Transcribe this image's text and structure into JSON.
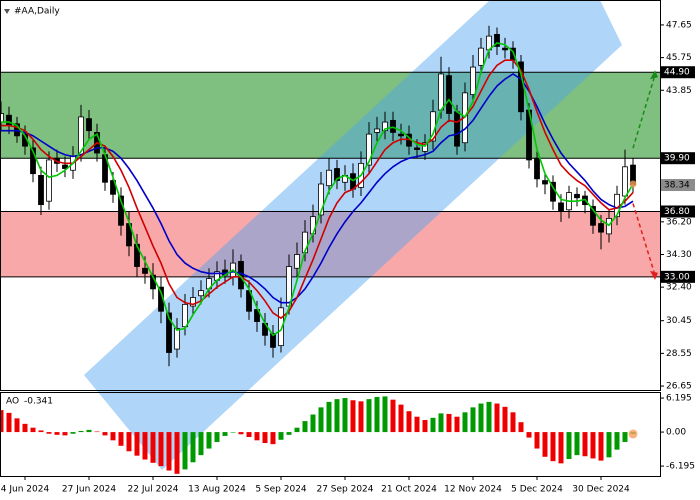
{
  "chart_data": [
    {
      "type": "candlestick",
      "title": "#AA,Daily",
      "categories": [
        null,
        null,
        null,
        "4 Jun 2024",
        null,
        null,
        null,
        null,
        null,
        null,
        null,
        "27 Jun 2024",
        null,
        null,
        null,
        null,
        null,
        null,
        null,
        "22 Jul 2024",
        null,
        null,
        null,
        null,
        null,
        null,
        null,
        "13 Aug 2024",
        null,
        null,
        null,
        null,
        null,
        null,
        null,
        "5 Sep 2024",
        null,
        null,
        null,
        null,
        null,
        null,
        null,
        "27 Sep 2024",
        null,
        null,
        null,
        null,
        null,
        null,
        null,
        "21 Oct 2024",
        null,
        null,
        null,
        null,
        null,
        null,
        null,
        "12 Nov 2024",
        null,
        null,
        null,
        null,
        null,
        null,
        null,
        "5 Dec 2024",
        null,
        null,
        null,
        null,
        null,
        null,
        null,
        "30 Dec 2024",
        null,
        null,
        null,
        null
      ],
      "open": [
        42.0,
        42.4,
        41.9,
        41.3,
        40.5,
        38.9,
        37.4,
        39.9,
        39.5,
        39.2,
        40.1,
        42.2,
        41.4,
        40.1,
        38.6,
        37.7,
        36.1,
        34.9,
        33.5,
        33.1,
        32.4,
        30.9,
        28.8,
        30.1,
        31.3,
        31.9,
        32.3,
        32.8,
        33.4,
        33.0,
        33.9,
        32.2,
        31.1,
        30.3,
        29.7,
        29.0,
        31.3,
        33.5,
        34.4,
        35.5,
        36.6,
        38.3,
        39.3,
        38.5,
        39.0,
        38.2,
        39.5,
        41.4,
        41.5,
        42.1,
        41.3,
        41.3,
        40.5,
        40.3,
        40.9,
        42.7,
        44.7,
        42.6,
        40.8,
        43.6,
        45.3,
        46.2,
        47.1,
        46.3,
        46.3,
        45.5,
        42.7,
        39.9,
        38.6,
        38.5,
        37.3,
        36.9,
        37.8,
        37.7,
        37.1,
        36.1,
        35.5,
        36.5,
        37.7,
        39.5
      ],
      "high": [
        43.2,
        42.9,
        42.3,
        41.8,
        41.0,
        39.4,
        40.3,
        40.4,
        40.0,
        40.6,
        43.0,
        42.7,
        41.9,
        40.6,
        39.1,
        38.2,
        36.8,
        35.5,
        34.2,
        33.8,
        33.0,
        31.5,
        30.6,
        32.0,
        32.4,
        32.8,
        33.5,
        33.9,
        34.0,
        34.6,
        34.3,
        32.8,
        31.6,
        30.9,
        30.2,
        31.8,
        34.3,
        35.0,
        36.3,
        37.2,
        39.1,
        39.9,
        39.8,
        39.5,
        39.6,
        40.3,
        42.0,
        42.3,
        42.6,
        42.6,
        41.9,
        41.8,
        41.0,
        41.3,
        43.3,
        45.8,
        45.2,
        43.0,
        44.3,
        45.9,
        46.9,
        47.6,
        47.5,
        46.9,
        46.7,
        45.9,
        43.1,
        40.3,
        39.0,
        38.9,
        37.8,
        38.3,
        38.2,
        38.0,
        37.5,
        36.6,
        36.9,
        38.3,
        40.4,
        39.9
      ],
      "low": [
        41.5,
        41.3,
        40.8,
        40.1,
        38.5,
        36.6,
        36.9,
        39.1,
        38.8,
        38.7,
        39.7,
        41.0,
        39.7,
        38.0,
        37.3,
        35.4,
        34.2,
        33.0,
        32.6,
        31.7,
        30.3,
        27.8,
        28.3,
        29.6,
        30.8,
        31.4,
        31.8,
        32.3,
        32.6,
        32.5,
        31.8,
        30.5,
        29.8,
        29.0,
        28.3,
        28.6,
        30.8,
        33.0,
        33.9,
        35.0,
        36.1,
        37.8,
        38.1,
        38.0,
        37.6,
        37.7,
        39.0,
        40.9,
        41.0,
        40.9,
        40.7,
        40.1,
        39.9,
        39.8,
        40.4,
        42.2,
        42.0,
        40.1,
        40.3,
        43.1,
        44.8,
        45.7,
        45.9,
        45.7,
        45.1,
        42.1,
        39.3,
        38.2,
        37.8,
        36.9,
        36.2,
        36.4,
        37.1,
        36.7,
        35.5,
        34.6,
        35.0,
        36.0,
        37.2,
        37.9
      ],
      "close": [
        42.5,
        41.8,
        41.2,
        40.6,
        39.0,
        37.2,
        39.8,
        39.6,
        39.3,
        40.0,
        42.3,
        41.5,
        40.2,
        38.5,
        37.8,
        36.0,
        34.8,
        33.6,
        33.2,
        32.3,
        31.0,
        28.6,
        30.0,
        31.4,
        31.8,
        32.2,
        32.9,
        33.3,
        33.1,
        33.8,
        32.3,
        31.0,
        30.4,
        29.6,
        28.9,
        31.2,
        33.6,
        34.3,
        35.6,
        36.5,
        38.4,
        39.2,
        38.6,
        38.9,
        38.1,
        39.6,
        41.3,
        41.6,
        42.0,
        41.4,
        41.2,
        40.6,
        40.4,
        40.8,
        42.6,
        44.8,
        42.5,
        40.6,
        43.7,
        45.2,
        46.3,
        47.0,
        46.4,
        46.2,
        45.6,
        42.6,
        39.8,
        38.7,
        38.4,
        37.4,
        36.8,
        37.9,
        37.6,
        37.2,
        36.0,
        35.6,
        36.4,
        37.8,
        39.4,
        38.34
      ],
      "series": [
        {
          "color": "#0000c8",
          "values": [
            41.5,
            41.5,
            41.5,
            41.4,
            41.2,
            40.9,
            40.6,
            40.3,
            40.1,
            40.0,
            40.1,
            40.3,
            40.5,
            40.5,
            40.3,
            39.9,
            39.3,
            38.6,
            37.8,
            37.0,
            36.1,
            35.1,
            34.3,
            33.8,
            33.5,
            33.3,
            33.2,
            33.2,
            33.2,
            33.3,
            33.2,
            33.0,
            32.7,
            32.3,
            31.8,
            31.5,
            31.5,
            31.8,
            32.3,
            33.0,
            33.8,
            34.7,
            35.5,
            36.2,
            36.8,
            37.3,
            37.9,
            38.5,
            39.0,
            39.4,
            39.7,
            39.9,
            40.0,
            40.1,
            40.3,
            40.8,
            41.2,
            41.3,
            41.6,
            42.1,
            42.8,
            43.5,
            44.1,
            44.5,
            44.8,
            44.5,
            43.8,
            42.9,
            41.9,
            41.0,
            40.2,
            39.6,
            39.1,
            38.6,
            38.0,
            37.5,
            37.2,
            37.0,
            37.1,
            37.4
          ]
        },
        {
          "color": "#d00000",
          "values": [
            41.8,
            41.8,
            41.7,
            41.5,
            41.0,
            40.4,
            40.0,
            39.7,
            39.6,
            39.6,
            40.0,
            40.4,
            40.8,
            40.6,
            40.0,
            39.2,
            38.2,
            37.0,
            35.9,
            34.8,
            33.8,
            32.6,
            31.8,
            31.5,
            31.4,
            31.6,
            32.0,
            32.4,
            32.7,
            33.0,
            33.0,
            32.7,
            32.2,
            31.6,
            30.9,
            30.6,
            31.0,
            31.8,
            32.9,
            34.0,
            35.2,
            36.4,
            37.3,
            37.9,
            38.1,
            38.5,
            39.0,
            39.7,
            40.4,
            40.8,
            41.0,
            41.0,
            40.8,
            40.7,
            41.0,
            41.7,
            42.1,
            42.0,
            42.3,
            42.9,
            43.8,
            44.7,
            45.3,
            45.6,
            45.6,
            45.0,
            43.9,
            42.6,
            41.4,
            40.4,
            39.5,
            39.0,
            38.6,
            38.3,
            37.8,
            37.3,
            36.9,
            37.0,
            37.4,
            37.9
          ]
        },
        {
          "color": "#00c800",
          "values": [
            42.0,
            42.0,
            41.8,
            41.2,
            40.3,
            39.2,
            38.8,
            38.9,
            39.2,
            39.6,
            40.3,
            41.0,
            41.3,
            40.1,
            38.8,
            37.4,
            36.2,
            34.8,
            33.9,
            33.0,
            32.1,
            30.6,
            29.9,
            30.0,
            30.8,
            31.5,
            32.3,
            32.8,
            33.1,
            33.4,
            33.0,
            32.3,
            31.2,
            30.3,
            29.6,
            29.9,
            31.2,
            32.8,
            34.5,
            35.5,
            36.8,
            38.0,
            38.7,
            38.9,
            38.6,
            38.9,
            39.7,
            40.8,
            41.6,
            41.7,
            41.5,
            41.1,
            40.7,
            40.6,
            41.3,
            42.7,
            43.3,
            42.6,
            42.3,
            43.2,
            44.9,
            46.2,
            46.6,
            46.5,
            46.1,
            44.8,
            42.7,
            40.4,
            39.0,
            38.2,
            37.5,
            37.4,
            37.4,
            37.5,
            36.9,
            36.3,
            36.0,
            36.6,
            37.6,
            38.4
          ]
        }
      ],
      "levels": [
        {
          "value": 44.9,
          "label": "44.90"
        },
        {
          "value": 39.9,
          "label": "39.90"
        },
        {
          "value": 36.8,
          "label": "36.80"
        },
        {
          "value": 33,
          "label": "33.00"
        }
      ],
      "zone_colors": [
        "#7fbf7f",
        "#f8a8a8"
      ],
      "arrow_colors": [
        "#1a8a1a",
        "#e02020"
      ],
      "up_color": "#ffffff",
      "down_color": "#000000",
      "ylim": [
        26.42,
        49.1
      ],
      "yticks": [
        47.65,
        45.75,
        43.85,
        {
          "value": 36.2,
          "label": "36.20"
        },
        {
          "value": 34.3,
          "label": "34.30"
        },
        {
          "value": 32.4,
          "label": "32.40"
        },
        30.45,
        28.55,
        26.65
      ]
    },
    {
      "type": "bar",
      "title": "AO",
      "values": [
        4.0,
        3.5,
        2.5,
        1.5,
        0.8,
        0.3,
        -0.3,
        -0.5,
        -0.6,
        -0.3,
        0.2,
        0.4,
        0.1,
        -0.6,
        -1.5,
        -2.5,
        -3.5,
        -4.3,
        -5.0,
        -5.6,
        -6.2,
        -7.0,
        -7.6,
        -6.8,
        -5.5,
        -4.2,
        -3.0,
        -1.8,
        -0.7,
        0.0,
        -0.4,
        -0.9,
        -1.5,
        -2.0,
        -2.2,
        -1.4,
        -0.5,
        0.8,
        2.0,
        3.2,
        4.5,
        5.5,
        6.0,
        6.2,
        5.8,
        5.6,
        6.0,
        6.4,
        6.5,
        5.9,
        5.0,
        3.8,
        2.8,
        2.2,
        2.6,
        3.4,
        3.3,
        2.8,
        3.6,
        4.5,
        5.2,
        5.5,
        5.2,
        4.6,
        3.6,
        1.8,
        -1.0,
        -3.0,
        -4.5,
        -5.3,
        -5.7,
        -4.9,
        -4.2,
        -4.4,
        -4.8,
        -5.2,
        -4.6,
        -3.2,
        -1.8,
        -0.341
      ],
      "up_color": "#009900",
      "down_color": "#ee0000",
      "ylim": [
        -8.0,
        7.3
      ],
      "yticks": [
        6.195,
        {
          "value": 0,
          "label": "0.00"
        },
        -6.195
      ]
    }
  ]
}
